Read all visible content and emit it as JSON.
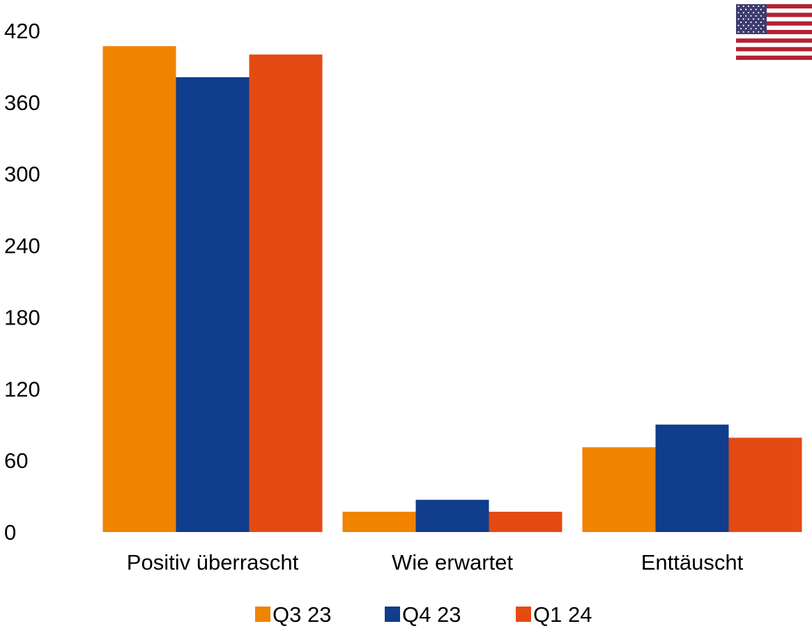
{
  "chart_data": {
    "type": "bar",
    "categories": [
      "Positiv überrascht",
      "Wie erwartet",
      "Enttäuscht"
    ],
    "series": [
      {
        "name": "Q3 23",
        "color": "#f08300",
        "values": [
          407,
          17,
          71
        ]
      },
      {
        "name": "Q4 23",
        "color": "#103d8c",
        "values": [
          381,
          27,
          90
        ]
      },
      {
        "name": "Q1 24",
        "color": "#e64a13",
        "values": [
          400,
          17,
          79
        ]
      }
    ],
    "title": "",
    "xlabel": "",
    "ylabel": "",
    "ylim": [
      0,
      420
    ],
    "yticks": [
      0,
      60,
      120,
      180,
      240,
      300,
      360,
      420
    ],
    "grid": false,
    "legend": "bottom"
  },
  "badge": {
    "icon": "us-flag-icon"
  }
}
